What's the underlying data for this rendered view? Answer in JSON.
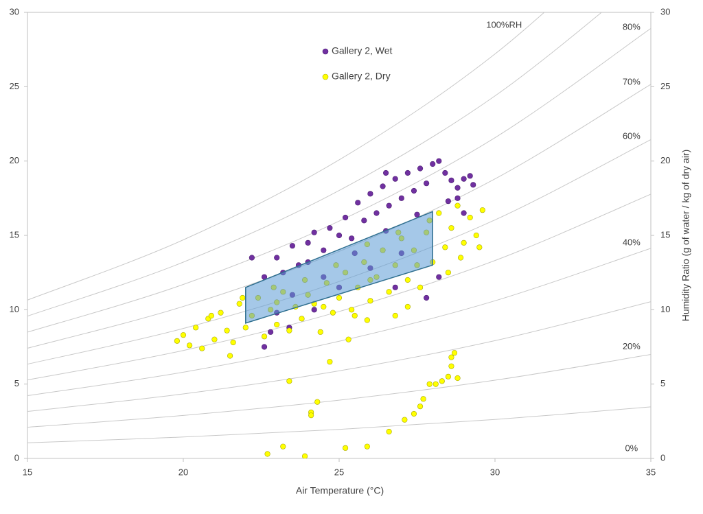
{
  "chart_data": {
    "type": "scatter",
    "x_label": "Air Temperature (°C)",
    "y2_label": "Humidity Ratio (g of water / kg of dry air)",
    "xlim": [
      15,
      35
    ],
    "xticks": [
      15,
      20,
      25,
      30,
      35
    ],
    "ylim": [
      0,
      30
    ],
    "yticks": [
      0,
      5,
      10,
      15,
      20,
      25,
      30
    ],
    "y2lim": [
      0,
      30
    ],
    "y2ticks": [
      0,
      5,
      10,
      15,
      20,
      25,
      30
    ],
    "series": [
      {
        "name": "Gallery 2, Wet",
        "color": "#7030a0",
        "x": [
          22.2,
          22.6,
          23,
          23.2,
          23.5,
          23.7,
          24,
          24.2,
          24.5,
          24.7,
          25,
          25.2,
          25.4,
          25.6,
          25.8,
          26,
          26.2,
          26.4,
          26.6,
          26.8,
          27,
          27.2,
          27.4,
          27.6,
          27.8,
          28,
          28.2,
          28.4,
          28.6,
          28.8,
          29,
          29.2,
          29.3,
          28.5,
          27.5,
          26.5,
          25.5,
          24.5,
          23.5,
          23,
          22.8,
          22.6,
          23.4,
          24.2,
          25,
          26,
          27,
          27.8,
          28.2,
          26.8,
          29,
          28.8,
          24,
          26.5
        ],
        "values": [
          13.5,
          12.2,
          13.5,
          12.5,
          14.3,
          13,
          14.5,
          15.2,
          14,
          15.5,
          15,
          16.2,
          14.8,
          17.2,
          16,
          17.8,
          16.5,
          18.3,
          17,
          18.8,
          17.5,
          19.2,
          18,
          19.5,
          18.5,
          19.8,
          20,
          19.2,
          18.7,
          18.2,
          18.8,
          19,
          18.4,
          17.3,
          16.4,
          15.3,
          13.8,
          12.2,
          11,
          9.8,
          8.5,
          7.5,
          8.8,
          10,
          11.5,
          12.8,
          13.8,
          10.8,
          12.2,
          11.5,
          16.5,
          17.5,
          13.2,
          19.2
        ]
      },
      {
        "name": "Gallery 2, Dry",
        "color": "#ffff00",
        "x": [
          19.8,
          20,
          20.2,
          20.4,
          20.6,
          20.8,
          21,
          21.2,
          21.4,
          21.6,
          21.8,
          22,
          22.2,
          22.4,
          22.6,
          22.8,
          23,
          23.2,
          23.4,
          23.6,
          23.8,
          24,
          24.2,
          24.4,
          24.6,
          24.8,
          25,
          25.2,
          25.4,
          25.6,
          25.8,
          26,
          26.2,
          26.4,
          26.6,
          26.8,
          27,
          27.2,
          27.4,
          27.6,
          27.8,
          28,
          28.2,
          28.4,
          28.6,
          28.8,
          29,
          29.2,
          29.4,
          29.6,
          29.5,
          28.9,
          27.9,
          26.9,
          25.9,
          24.9,
          23.9,
          22.9,
          21.9,
          20.9,
          21.5,
          25.5,
          25.9,
          26.8,
          27.2,
          23,
          24.5,
          26,
          27.5,
          28.5,
          23.4,
          24.7,
          25.3,
          24.3,
          24.1,
          24.1,
          22.7,
          23.2,
          23.9,
          25.2,
          25.9,
          26.6,
          27.1,
          27.4,
          27.6,
          27.7,
          27.9,
          28.1,
          28.3,
          28.5,
          28.6,
          28.6,
          28.7,
          28.8
        ],
        "values": [
          7.9,
          8.3,
          7.6,
          8.8,
          7.4,
          9.4,
          8,
          9.8,
          8.6,
          7.8,
          10.4,
          8.8,
          9.6,
          10.8,
          8.2,
          10,
          9,
          11.2,
          8.6,
          10.2,
          9.4,
          11,
          10.4,
          8.5,
          11.8,
          9.8,
          10.8,
          12.5,
          10,
          11.5,
          13.2,
          10.6,
          12.2,
          14,
          11.2,
          13,
          14.8,
          12,
          14,
          11.5,
          15.2,
          13.2,
          16.5,
          14.2,
          15.5,
          17,
          14.5,
          16.2,
          15,
          16.7,
          14.2,
          13.5,
          16,
          15.2,
          14.4,
          13,
          12,
          11.5,
          10.8,
          9.6,
          6.9,
          9.6,
          9.3,
          9.6,
          10.2,
          10.5,
          10.2,
          12,
          13,
          12.5,
          5.2,
          6.5,
          8,
          3.8,
          3.1,
          2.9,
          0.3,
          0.8,
          0.15,
          0.7,
          0.8,
          1.8,
          2.6,
          3,
          3.5,
          4,
          5,
          5,
          5.2,
          5.5,
          6.2,
          6.8,
          7.1,
          5.4
        ]
      }
    ],
    "zone": {
      "color": "#5b9bd5",
      "x": [
        22,
        22,
        28,
        28
      ],
      "values": [
        9.1,
        11.5,
        16.6,
        13
      ]
    },
    "rh_curves": {
      "color": "#c8c8c8",
      "x": [
        15,
        20,
        25,
        30,
        35
      ],
      "lines": [
        {
          "label": "100%RH",
          "values": [
            10.65,
            14.7,
            20.08,
            27.2,
            36.58
          ]
        },
        {
          "values": [
            9.57,
            13.2,
            18.02,
            24.38,
            32.73
          ]
        },
        {
          "label": "80%",
          "values": [
            8.49,
            11.7,
            15.96,
            21.57,
            28.92
          ]
        },
        {
          "label": "70%",
          "values": [
            7.41,
            10.22,
            13.92,
            18.8,
            25.16
          ]
        },
        {
          "label": "60%",
          "values": [
            6.34,
            8.74,
            11.9,
            16.04,
            21.44
          ]
        },
        {
          "values": [
            5.28,
            7.26,
            9.88,
            13.31,
            17.77
          ]
        },
        {
          "label": "40%",
          "values": [
            4.22,
            5.8,
            7.88,
            10.6,
            14.13
          ]
        },
        {
          "values": [
            3.16,
            4.34,
            5.89,
            7.92,
            10.54
          ]
        },
        {
          "label": "20%",
          "values": [
            2.1,
            2.89,
            3.92,
            5.26,
            6.99
          ]
        },
        {
          "values": [
            1.05,
            1.44,
            1.95,
            2.62,
            3.47
          ]
        },
        {
          "label": "0%",
          "values": [
            0,
            0,
            0,
            0,
            0
          ]
        }
      ]
    }
  }
}
